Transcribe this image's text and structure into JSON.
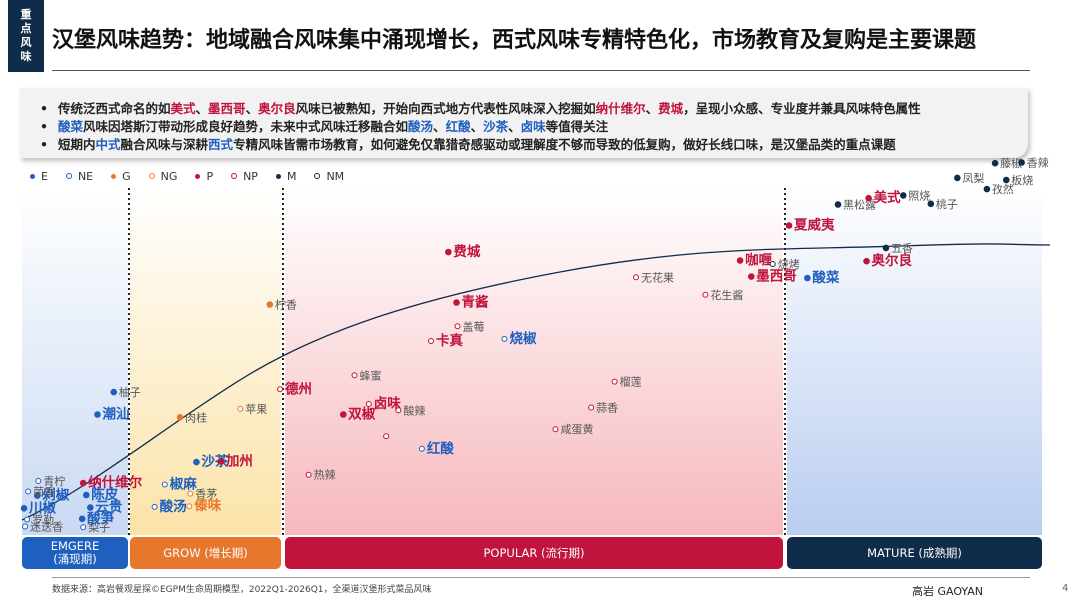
{
  "header": {
    "tag": "重点风味",
    "title": "汉堡风味趋势：地域融合风味集中涌现增长，西式风味专精特色化，市场教育及复购是主要课题"
  },
  "notes": [
    {
      "bullet": "•",
      "parts": [
        {
          "t": "传统泛西式命名的如",
          "c": ""
        },
        {
          "t": "美式",
          "c": "red"
        },
        {
          "t": "、",
          "c": ""
        },
        {
          "t": "墨西哥",
          "c": "red"
        },
        {
          "t": "、",
          "c": ""
        },
        {
          "t": "奥尔良",
          "c": "red"
        },
        {
          "t": "风味已被熟知，开始向西式地方代表性风味深入挖掘如",
          "c": ""
        },
        {
          "t": "纳什维尔",
          "c": "red"
        },
        {
          "t": "、",
          "c": ""
        },
        {
          "t": "费城",
          "c": "red"
        },
        {
          "t": "，呈现小众感、专业度并兼具风味特色属性",
          "c": ""
        }
      ]
    },
    {
      "bullet": "•",
      "parts": [
        {
          "t": "酸菜",
          "c": "blue"
        },
        {
          "t": "风味因塔斯汀带动形成良好趋势，未来中式风味迁移融合如",
          "c": ""
        },
        {
          "t": "酸汤",
          "c": "blue"
        },
        {
          "t": "、",
          "c": ""
        },
        {
          "t": "红酸",
          "c": "blue"
        },
        {
          "t": "、",
          "c": ""
        },
        {
          "t": "沙茶",
          "c": "blue"
        },
        {
          "t": "、",
          "c": ""
        },
        {
          "t": "卤味",
          "c": "blue"
        },
        {
          "t": "等值得关注",
          "c": ""
        }
      ]
    },
    {
      "bullet": "•",
      "parts": [
        {
          "t": "短期内",
          "c": ""
        },
        {
          "t": "中式",
          "c": "blue"
        },
        {
          "t": "融合风味与深耕",
          "c": ""
        },
        {
          "t": "西式",
          "c": "blue"
        },
        {
          "t": "专精风味皆需市场教育，如何避免仅靠猎奇感驱动或理解度不够而导致的低复购，做好长线口味，是汉堡品类的重点课题",
          "c": ""
        }
      ]
    }
  ],
  "colors": {
    "E": "#1f5fbf",
    "NE": "#1f5fbf",
    "G": "#e8772e",
    "NG": "#e8772e",
    "P": "#c0143c",
    "NP": "#c0143c",
    "M": "#0f2d4a",
    "NM": "#0f2d4a",
    "curve": "#0f2d4a"
  },
  "legend": [
    {
      "code": "E",
      "label": "E",
      "filled": true
    },
    {
      "code": "NE",
      "label": "NE",
      "filled": false
    },
    {
      "code": "G",
      "label": "G",
      "filled": true
    },
    {
      "code": "NG",
      "label": "NG",
      "filled": false
    },
    {
      "code": "P",
      "label": "P",
      "filled": true
    },
    {
      "code": "NP",
      "label": "NP",
      "filled": false
    },
    {
      "code": "M",
      "label": "M",
      "filled": true
    },
    {
      "code": "NM",
      "label": "NM",
      "filled": false
    }
  ],
  "stages": [
    {
      "key": "emerge",
      "label": "EMGERE\n(涌现期)",
      "color": "#1f5fbf"
    },
    {
      "key": "grow",
      "label": "GROW (增长期)",
      "color": "#e8772e"
    },
    {
      "key": "popular",
      "label": "POPULAR (流行期)",
      "color": "#c0143c"
    },
    {
      "key": "mature",
      "label": "MATURE (成熟期)",
      "color": "#0f2d4a"
    }
  ],
  "chart_data": {
    "type": "scatter",
    "title": "",
    "xlabel": "",
    "ylabel": "",
    "axes_printed": false,
    "curve": "lifecycle S-curve rising from EMGERE to MATURE",
    "points": [
      {
        "name": "迷迭香",
        "code": "NE",
        "stage": "emerge",
        "x": 0.3,
        "y": 0.5,
        "big": false
      },
      {
        "name": "罗勒",
        "code": "NE",
        "stage": "emerge",
        "x": 0.5,
        "y": 1.5,
        "big": false
      },
      {
        "name": "川椒",
        "code": "E",
        "stage": "emerge",
        "x": 0.2,
        "y": 3.1,
        "big": true
      },
      {
        "name": "剁椒",
        "code": "E",
        "stage": "emerge",
        "x": 1.5,
        "y": 4.9,
        "big": true
      },
      {
        "name": "菌香",
        "code": "NE",
        "stage": "emerge",
        "x": 0.6,
        "y": 5.5,
        "big": false
      },
      {
        "name": "青柠",
        "code": "NE",
        "stage": "emerge",
        "x": 1.6,
        "y": 7.0,
        "big": false
      },
      {
        "name": "纳什维尔",
        "code": "P",
        "stage": "emerge",
        "x": 6.0,
        "y": 6.7,
        "big": true
      },
      {
        "name": "陈皮",
        "code": "E",
        "stage": "emerge",
        "x": 6.3,
        "y": 5.0,
        "big": true
      },
      {
        "name": "云贵",
        "code": "E",
        "stage": "emerge",
        "x": 6.7,
        "y": 3.2,
        "big": true
      },
      {
        "name": "酸笋",
        "code": "E",
        "stage": "emerge",
        "x": 5.9,
        "y": 1.6,
        "big": true
      },
      {
        "name": "梨子",
        "code": "NE",
        "stage": "emerge",
        "x": 6.0,
        "y": 0.4,
        "big": false
      },
      {
        "name": "潮汕",
        "code": "E",
        "stage": "emerge",
        "x": 7.4,
        "y": 16.5,
        "big": true
      },
      {
        "name": "柚子",
        "code": "E",
        "stage": "emerge",
        "x": 9.0,
        "y": 19.7,
        "big": false
      },
      {
        "name": "椒麻",
        "code": "NE",
        "stage": "grow",
        "x": 14.0,
        "y": 6.5,
        "big": true
      },
      {
        "name": "酸汤",
        "code": "NE",
        "stage": "grow",
        "x": 13.0,
        "y": 3.3,
        "big": true
      },
      {
        "name": "香茅",
        "code": "NG",
        "stage": "grow",
        "x": 16.5,
        "y": 5.2,
        "big": false
      },
      {
        "name": "傣味",
        "code": "NG",
        "stage": "grow",
        "x": 16.4,
        "y": 3.4,
        "big": true
      },
      {
        "name": "沙茶",
        "code": "E",
        "stage": "grow",
        "x": 17.1,
        "y": 9.7,
        "big": true
      },
      {
        "name": "加州",
        "code": "P",
        "stage": "grow",
        "x": 19.5,
        "y": 9.8,
        "big": true
      },
      {
        "name": "肉桂",
        "code": "G",
        "stage": "grow",
        "x": 15.5,
        "y": 16.1,
        "big": false
      },
      {
        "name": "苹果",
        "code": "NG",
        "stage": "grow",
        "x": 21.4,
        "y": 17.3,
        "big": false
      },
      {
        "name": "德州",
        "code": "NP",
        "stage": "grow",
        "x": 25.3,
        "y": 20.1,
        "big": true
      },
      {
        "name": "柠香",
        "code": "G",
        "stage": "grow",
        "x": 24.3,
        "y": 32.2,
        "big": false
      },
      {
        "name": "热辣",
        "code": "NP",
        "stage": "popular",
        "x": 28.1,
        "y": 7.9,
        "big": false
      },
      {
        "name": "蜂蜜",
        "code": "NP",
        "stage": "popular",
        "x": 32.6,
        "y": 22.1,
        "big": false
      },
      {
        "name": "卤味",
        "code": "NP",
        "stage": "popular",
        "x": 34.0,
        "y": 18.0,
        "big": true
      },
      {
        "name": "双椒",
        "code": "P",
        "stage": "popular",
        "x": 31.5,
        "y": 16.5,
        "big": true
      },
      {
        "name": "酸辣",
        "code": "NP",
        "stage": "popular",
        "x": 36.9,
        "y": 17.1,
        "big": false
      },
      {
        "name": "未标注",
        "code": "NP",
        "stage": "popular",
        "x": 35.7,
        "y": 13.4,
        "big": false
      },
      {
        "name": "红酸",
        "code": "NE",
        "stage": "popular",
        "x": 39.2,
        "y": 11.6,
        "big": true
      },
      {
        "name": "卡真",
        "code": "NP",
        "stage": "popular",
        "x": 40.1,
        "y": 27.0,
        "big": true
      },
      {
        "name": "青酱",
        "code": "P",
        "stage": "popular",
        "x": 42.6,
        "y": 32.5,
        "big": true
      },
      {
        "name": "盖莓",
        "code": "NP",
        "stage": "popular",
        "x": 42.7,
        "y": 29.1,
        "big": false
      },
      {
        "name": "费城",
        "code": "P",
        "stage": "popular",
        "x": 41.8,
        "y": 39.7,
        "big": true
      },
      {
        "name": "烧椒",
        "code": "NE",
        "stage": "popular",
        "x": 47.3,
        "y": 27.3,
        "big": true
      },
      {
        "name": "榴莲",
        "code": "NP",
        "stage": "popular",
        "x": 58.1,
        "y": 21.2,
        "big": false
      },
      {
        "name": "蒜香",
        "code": "NP",
        "stage": "popular",
        "x": 55.8,
        "y": 17.5,
        "big": false
      },
      {
        "name": "咸蛋黄",
        "code": "NP",
        "stage": "popular",
        "x": 52.3,
        "y": 14.4,
        "big": false
      },
      {
        "name": "无花果",
        "code": "NP",
        "stage": "popular",
        "x": 60.2,
        "y": 36.1,
        "big": false
      },
      {
        "name": "花生酱",
        "code": "NP",
        "stage": "popular",
        "x": 67.0,
        "y": 33.6,
        "big": false
      },
      {
        "name": "咖喱",
        "code": "P",
        "stage": "popular",
        "x": 70.4,
        "y": 38.5,
        "big": true
      },
      {
        "name": "墨西哥",
        "code": "P",
        "stage": "popular",
        "x": 71.5,
        "y": 36.2,
        "big": true
      },
      {
        "name": "烧烤",
        "code": "NM",
        "stage": "mature",
        "x": 73.6,
        "y": 38.0,
        "big": false
      },
      {
        "name": "夏威夷",
        "code": "P",
        "stage": "mature",
        "x": 75.2,
        "y": 43.5,
        "big": true
      },
      {
        "name": "酸菜",
        "code": "E",
        "stage": "mature",
        "x": 77.0,
        "y": 36.0,
        "big": true
      },
      {
        "name": "黑松露",
        "code": "M",
        "stage": "mature",
        "x": 80.0,
        "y": 46.5,
        "big": false
      },
      {
        "name": "美式",
        "code": "P",
        "stage": "mature",
        "x": 83.0,
        "y": 47.4,
        "big": true
      },
      {
        "name": "奥尔良",
        "code": "P",
        "stage": "mature",
        "x": 82.8,
        "y": 38.4,
        "big": true
      },
      {
        "name": "五香",
        "code": "M",
        "stage": "mature",
        "x": 84.7,
        "y": 40.3,
        "big": false
      },
      {
        "name": "照烧",
        "code": "M",
        "stage": "mature",
        "x": 86.4,
        "y": 47.8,
        "big": false
      },
      {
        "name": "桃子",
        "code": "M",
        "stage": "mature",
        "x": 89.1,
        "y": 46.6,
        "big": false
      },
      {
        "name": "凤梨",
        "code": "M",
        "stage": "mature",
        "x": 91.7,
        "y": 50.3,
        "big": false
      },
      {
        "name": "藤椒",
        "code": "M",
        "stage": "mature",
        "x": 95.4,
        "y": 52.4,
        "big": false
      },
      {
        "name": "孜然",
        "code": "M",
        "stage": "mature",
        "x": 94.6,
        "y": 48.7,
        "big": false
      },
      {
        "name": "板烧",
        "code": "M",
        "stage": "mature",
        "x": 96.5,
        "y": 50.0,
        "big": false
      },
      {
        "name": "香辣",
        "code": "M",
        "stage": "mature",
        "x": 98.0,
        "y": 52.5,
        "big": false
      }
    ]
  },
  "footer": {
    "source": "数据来源：高岩餐观星探©EGPM生命周期模型，2022Q1-2026Q1，全渠道汉堡形式菜品风味",
    "brand": "高岩 GAOYAN",
    "page": "4"
  }
}
